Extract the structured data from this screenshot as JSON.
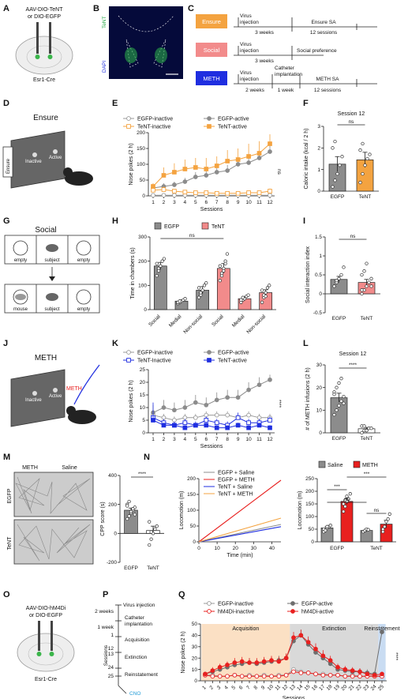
{
  "panels": {
    "A": {
      "letter": "A",
      "line1": "AAV-DIO-TeNT",
      "line2": "or DIO-EGFP",
      "mouse": "Esr1-Cre"
    },
    "B": {
      "letter": "B",
      "stain1": "TeNT",
      "stain2": "DAPI"
    },
    "C": {
      "letter": "C",
      "rows": [
        {
          "label": "Ensure",
          "color": "#f4a340",
          "t1": "Virus",
          "t2": "injection",
          "gap": "3 weeks",
          "end": "Ensure SA",
          "sessions": "12 sessions"
        },
        {
          "label": "Social",
          "color": "#f28b8b",
          "t1": "Virus",
          "t2": "injection",
          "gap": "3 weeks",
          "end": "Social preference"
        },
        {
          "label": "METH",
          "color": "#1f2ee0",
          "t1": "Virus",
          "t2": "injection",
          "c1": "Catheter",
          "c2": "implantation",
          "gap": "2 weeks",
          "gap2": "1 week",
          "end": "METH SA",
          "sessions": "12 sessions"
        }
      ]
    },
    "D": {
      "letter": "D",
      "title": "Ensure",
      "box": "Ensure",
      "left": "Inactive",
      "right": "Active"
    },
    "G": {
      "letter": "G",
      "title": "Social",
      "top": [
        "empty",
        "subject",
        "empty"
      ],
      "bottom": [
        "mouse",
        "subject",
        "empty"
      ]
    },
    "J": {
      "letter": "J",
      "title": "METH",
      "tube": "METH",
      "left": "Inactive",
      "right": "Active"
    },
    "M": {
      "letter": "M",
      "h1": "METH",
      "h2": "Saline",
      "r1": "EGFP",
      "r2": "TeNT"
    },
    "O": {
      "letter": "O",
      "line1": "AAV-DIO-hM4Di",
      "line2": "or DIO-EGFP",
      "mouse": "Esr1-Cre"
    },
    "P": {
      "letter": "P",
      "weeks2": "2 weeks",
      "week1": "1 week",
      "ev": [
        "Virus injection",
        "Catheter",
        "implantation",
        "Acquisition",
        "Extinction",
        "Reinstatement"
      ],
      "nums": [
        "1",
        "12",
        "13",
        "24",
        "25"
      ],
      "axis": "Sessions",
      "cno": "CNO"
    }
  },
  "colors": {
    "egfp": "#8c8c8c",
    "egfp_dark": "#6e6e6e",
    "tent": "#f4a340",
    "tent_red": "#f28b8b",
    "meth": "#e8201f",
    "blue": "#1f2ee0",
    "hm4di": "#e8201f"
  },
  "chart_data": [
    {
      "panel": "E",
      "type": "line",
      "xlabel": "Sessions",
      "ylabel": "Nose pokes (2 h)",
      "ylim": [
        0,
        200
      ],
      "yticks": [
        0,
        50,
        100,
        150,
        200
      ],
      "x": [
        1,
        2,
        3,
        4,
        5,
        6,
        7,
        8,
        9,
        10,
        11,
        12
      ],
      "annotation": "ns",
      "series": [
        {
          "name": "EGFP-inactive",
          "marker": "open-circle",
          "color": "#9a9a9a",
          "values": [
            2,
            2,
            2,
            2,
            2,
            2,
            2,
            2,
            2,
            2,
            2,
            2
          ]
        },
        {
          "name": "EGFP-active",
          "marker": "filled-circle",
          "color": "#8c8c8c",
          "values": [
            25,
            30,
            35,
            45,
            60,
            65,
            75,
            80,
            100,
            105,
            120,
            140
          ]
        },
        {
          "name": "TeNT-inactive",
          "marker": "open-square",
          "color": "#f4a340",
          "values": [
            18,
            20,
            15,
            12,
            10,
            10,
            8,
            8,
            8,
            10,
            10,
            15
          ]
        },
        {
          "name": "TeNT-active",
          "marker": "filled-square",
          "color": "#f4a340",
          "values": [
            30,
            65,
            75,
            85,
            90,
            85,
            95,
            110,
            115,
            125,
            135,
            165
          ]
        }
      ],
      "errors": [
        [
          2,
          2,
          2,
          2,
          2,
          2,
          2,
          2,
          2,
          2,
          2,
          2
        ],
        [
          8,
          10,
          10,
          12,
          15,
          15,
          18,
          18,
          20,
          20,
          20,
          25
        ],
        [
          8,
          10,
          6,
          5,
          4,
          5,
          4,
          3,
          4,
          5,
          5,
          8
        ],
        [
          10,
          25,
          28,
          30,
          30,
          35,
          30,
          35,
          35,
          40,
          38,
          30
        ]
      ]
    },
    {
      "panel": "F",
      "type": "bar",
      "title": "Session 12",
      "ylabel": "Caloric intake (kcal / 2 h)",
      "ylim": [
        0,
        3
      ],
      "yticks": [
        0,
        1,
        2,
        3
      ],
      "categories": [
        "EGFP",
        "TeNT"
      ],
      "values": [
        1.25,
        1.45
      ],
      "errors": [
        0.35,
        0.35
      ],
      "annotation": "ns",
      "points": [
        [
          0.2,
          0.5,
          0.8,
          1.2,
          1.6,
          2.0,
          2.3
        ],
        [
          0.4,
          0.8,
          1.2,
          1.5,
          1.7,
          1.9,
          2.2
        ]
      ]
    },
    {
      "panel": "H",
      "type": "bar",
      "ylabel": "Time in chambers (s)",
      "ylim": [
        0,
        300
      ],
      "yticks": [
        0,
        100,
        200,
        300
      ],
      "legend": [
        "EGFP",
        "TeNT"
      ],
      "categories": [
        "Social",
        "Medial",
        "Non-social",
        "Social",
        "Medial",
        "Non-social"
      ],
      "values": [
        180,
        35,
        80,
        170,
        45,
        70
      ],
      "errors": [
        15,
        5,
        15,
        20,
        8,
        12
      ],
      "annotation": "ns",
      "points": [
        [
          140,
          160,
          180,
          200,
          210,
          190,
          170
        ],
        [
          25,
          30,
          35,
          40,
          45,
          30,
          35
        ],
        [
          50,
          60,
          80,
          100,
          110,
          90,
          70
        ],
        [
          120,
          140,
          160,
          200,
          230,
          180,
          150,
          170,
          190
        ],
        [
          30,
          40,
          45,
          55,
          60,
          40,
          50
        ],
        [
          30,
          50,
          70,
          90,
          100,
          80,
          60,
          55
        ]
      ]
    },
    {
      "panel": "I",
      "type": "bar",
      "ylabel": "Social interaction index",
      "ylim": [
        -0.5,
        1.5
      ],
      "yticks": [
        -0.5,
        0.0,
        0.5,
        1.0,
        1.5
      ],
      "categories": [
        "EGFP",
        "TeNT"
      ],
      "values": [
        0.38,
        0.3
      ],
      "errors": [
        0.08,
        0.08
      ],
      "annotation": "ns",
      "points": [
        [
          0.2,
          0.3,
          0.4,
          0.5,
          0.7,
          0.2,
          0.35
        ],
        [
          0.0,
          0.1,
          0.2,
          0.3,
          0.4,
          0.5,
          0.6,
          0.8,
          0.3,
          0.2,
          0.1
        ]
      ]
    },
    {
      "panel": "K",
      "type": "line",
      "xlabel": "Sessions",
      "ylabel": "Nose pokes (2 h)",
      "ylim": [
        0,
        25
      ],
      "yticks": [
        0,
        5,
        10,
        15,
        20,
        25
      ],
      "x": [
        1,
        2,
        3,
        4,
        5,
        6,
        7,
        8,
        9,
        10,
        11,
        12
      ],
      "annotation": "****",
      "series": [
        {
          "name": "EGFP-inactive",
          "marker": "open-circle",
          "color": "#9a9a9a",
          "values": [
            7,
            6,
            5,
            6,
            6,
            7,
            7,
            7,
            6,
            7,
            6,
            6
          ]
        },
        {
          "name": "EGFP-active",
          "marker": "filled-circle",
          "color": "#8c8c8c",
          "values": [
            8,
            10,
            9,
            10,
            12,
            11,
            13,
            14,
            14,
            17,
            19,
            21
          ]
        },
        {
          "name": "TeNT-Inactive",
          "marker": "open-square",
          "color": "#1f2ee0",
          "values": [
            6,
            4,
            3,
            4,
            3,
            5,
            4,
            3,
            6,
            4,
            4,
            5
          ]
        },
        {
          "name": "TeNT-active",
          "marker": "filled-square",
          "color": "#1f2ee0",
          "values": [
            5,
            3,
            3,
            2,
            3,
            3,
            2,
            2,
            3,
            2,
            3,
            2
          ]
        }
      ],
      "errors": [
        [
          2,
          1.5,
          1.5,
          1.5,
          1.5,
          1.5,
          1.5,
          1.5,
          1.5,
          1.5,
          1.5,
          1.5
        ],
        [
          3,
          3,
          3,
          3,
          3,
          3,
          3,
          3,
          3,
          3,
          3,
          2
        ],
        [
          6,
          1.5,
          1.5,
          1.5,
          1.5,
          1.5,
          1.5,
          1.5,
          2,
          1.5,
          1.5,
          1.5
        ],
        [
          2,
          1,
          1,
          1,
          1,
          1,
          1,
          1,
          1,
          1,
          1,
          1
        ]
      ]
    },
    {
      "panel": "L",
      "type": "bar",
      "title": "Session 12",
      "ylabel": "# of METH infusions (2 h)",
      "ylim": [
        0,
        30
      ],
      "yticks": [
        0,
        10,
        20,
        30
      ],
      "categories": [
        "EGFP",
        "TeNT"
      ],
      "values": [
        15.5,
        1.8
      ],
      "errors": [
        2,
        0.6
      ],
      "annotation": "****",
      "points": [
        [
          8,
          10,
          12,
          14,
          16,
          18,
          20,
          22,
          24,
          13,
          17
        ],
        [
          0,
          1,
          1,
          2,
          2,
          3,
          3,
          1
        ]
      ]
    },
    {
      "panel": "M",
      "type": "bar",
      "ylabel": "CPP score (s)",
      "ylim": [
        -200,
        400
      ],
      "yticks": [
        -200,
        0,
        200,
        400
      ],
      "categories": [
        "EGFP",
        "TeNT"
      ],
      "values": [
        160,
        20
      ],
      "errors": [
        15,
        30
      ],
      "annotation": "****",
      "points": [
        [
          100,
          120,
          140,
          160,
          180,
          200,
          220,
          150,
          170,
          130,
          190
        ],
        [
          -80,
          -40,
          0,
          30,
          50,
          80,
          10
        ]
      ]
    },
    {
      "panel": "N",
      "type": "line",
      "xlabel": "Time (min)",
      "ylabel": "Locomotion (m)",
      "xlim": [
        0,
        45
      ],
      "ylim": [
        0,
        200
      ],
      "xticks": [
        0,
        10,
        20,
        30,
        40
      ],
      "yticks": [
        0,
        50,
        100,
        150,
        200
      ],
      "series": [
        {
          "name": "EGFP + Saline",
          "color": "#8c8c8c",
          "x": [
            0,
            45
          ],
          "values": [
            0,
            55
          ]
        },
        {
          "name": "EGFP + METH",
          "color": "#e8201f",
          "x": [
            0,
            45
          ],
          "values": [
            0,
            195
          ]
        },
        {
          "name": "TeNT + Saline",
          "color": "#1f2ee0",
          "x": [
            0,
            45
          ],
          "values": [
            0,
            48
          ]
        },
        {
          "name": "TeNT + METH",
          "color": "#f4a340",
          "x": [
            0,
            45
          ],
          "values": [
            0,
            75
          ]
        }
      ]
    },
    {
      "panel": "N2",
      "type": "bar",
      "ylabel": "Locomotion (m)",
      "ylim": [
        0,
        250
      ],
      "yticks": [
        0,
        50,
        100,
        150,
        200,
        250
      ],
      "legend": [
        "Saline",
        "METH"
      ],
      "categories": [
        "EGFP",
        "EGFP",
        "TeNT",
        "TeNT"
      ],
      "values": [
        55,
        160,
        45,
        70
      ],
      "errors": [
        5,
        12,
        5,
        15
      ],
      "annotations": [
        "***",
        "***",
        "ns",
        "ns"
      ],
      "points": [
        [
          40,
          50,
          55,
          60,
          65,
          50,
          45,
          60
        ],
        [
          120,
          140,
          160,
          170,
          190,
          150,
          165,
          180
        ],
        [
          40,
          45,
          50,
          48
        ],
        [
          40,
          60,
          80,
          90,
          110,
          50
        ]
      ]
    },
    {
      "panel": "Q",
      "type": "line",
      "xlabel": "Sessions",
      "ylabel": "Nose pokes (2 h)",
      "ylim": [
        0,
        50
      ],
      "yticks": [
        0,
        10,
        20,
        30,
        40,
        50
      ],
      "x": [
        1,
        2,
        3,
        4,
        5,
        6,
        7,
        8,
        9,
        10,
        11,
        12,
        13,
        14,
        15,
        16,
        17,
        18,
        19,
        20,
        21,
        22,
        23,
        24,
        25
      ],
      "phases": [
        "Acquisition",
        "Extinction",
        "Reinstatement"
      ],
      "annotation": "****",
      "series": [
        {
          "name": "EGFP-inactive",
          "marker": "open-circle",
          "color": "#9a9a9a",
          "values": [
            5,
            5,
            4,
            4,
            5,
            4,
            5,
            4,
            5,
            4,
            5,
            5,
            10,
            8,
            7,
            6,
            6,
            5,
            5,
            4,
            5,
            4,
            4,
            4,
            4
          ]
        },
        {
          "name": "EGFP-active",
          "marker": "filled-circle",
          "color": "#6e6e6e",
          "values": [
            6,
            8,
            10,
            12,
            14,
            15,
            16,
            15,
            16,
            17,
            18,
            20,
            35,
            40,
            32,
            25,
            20,
            15,
            10,
            9,
            8,
            8,
            7,
            6,
            43
          ]
        },
        {
          "name": "hM4Di-inactive",
          "marker": "open-circle",
          "color": "#e8201f",
          "values": [
            5,
            4,
            4,
            4,
            5,
            4,
            4,
            4,
            4,
            4,
            4,
            5,
            8,
            7,
            7,
            6,
            5,
            5,
            5,
            4,
            4,
            4,
            4,
            4,
            4
          ]
        },
        {
          "name": "hM4Di-active",
          "marker": "filled-circle",
          "color": "#e8201f",
          "values": [
            6,
            9,
            12,
            14,
            16,
            17,
            16,
            16,
            17,
            18,
            17,
            20,
            38,
            40,
            34,
            28,
            22,
            18,
            12,
            10,
            9,
            8,
            6,
            5,
            6
          ]
        }
      ],
      "errors": [
        [
          1,
          1,
          1,
          1,
          1,
          1,
          1,
          1,
          1,
          1,
          1,
          1,
          2,
          2,
          2,
          2,
          2,
          1,
          1,
          1,
          1,
          1,
          1,
          1,
          1
        ],
        [
          2,
          3,
          3,
          3,
          3,
          4,
          4,
          4,
          4,
          4,
          4,
          4,
          5,
          5,
          5,
          5,
          5,
          4,
          3,
          3,
          3,
          3,
          3,
          2,
          5
        ],
        [
          1,
          1,
          1,
          1,
          1,
          1,
          1,
          1,
          1,
          1,
          1,
          1,
          2,
          2,
          2,
          2,
          1,
          1,
          1,
          1,
          1,
          1,
          1,
          1,
          1
        ],
        [
          2,
          3,
          3,
          3,
          4,
          4,
          4,
          4,
          4,
          4,
          4,
          4,
          5,
          5,
          5,
          5,
          5,
          4,
          3,
          3,
          3,
          3,
          2,
          2,
          2
        ]
      ]
    }
  ]
}
